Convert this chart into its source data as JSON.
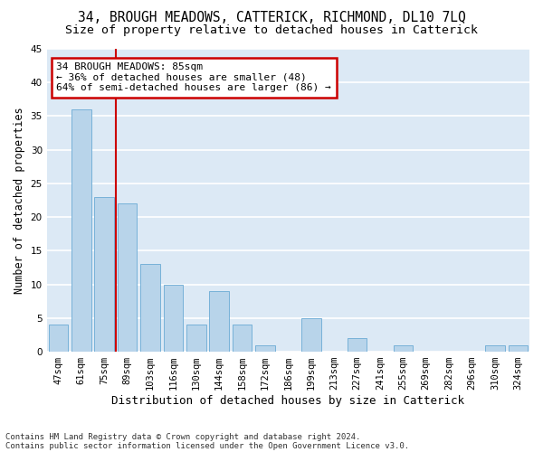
{
  "title1": "34, BROUGH MEADOWS, CATTERICK, RICHMOND, DL10 7LQ",
  "title2": "Size of property relative to detached houses in Catterick",
  "xlabel": "Distribution of detached houses by size in Catterick",
  "ylabel": "Number of detached properties",
  "categories": [
    "47sqm",
    "61sqm",
    "75sqm",
    "89sqm",
    "103sqm",
    "116sqm",
    "130sqm",
    "144sqm",
    "158sqm",
    "172sqm",
    "186sqm",
    "199sqm",
    "213sqm",
    "227sqm",
    "241sqm",
    "255sqm",
    "269sqm",
    "282sqm",
    "296sqm",
    "310sqm",
    "324sqm"
  ],
  "values": [
    4,
    36,
    23,
    22,
    13,
    10,
    4,
    9,
    4,
    1,
    0,
    5,
    0,
    2,
    0,
    1,
    0,
    0,
    0,
    1,
    1
  ],
  "bar_color": "#b8d4ea",
  "bar_edge_color": "#6aaad4",
  "vline_color": "#cc0000",
  "annotation_title": "34 BROUGH MEADOWS: 85sqm",
  "annotation_line1": "← 36% of detached houses are smaller (48)",
  "annotation_line2": "64% of semi-detached houses are larger (86) →",
  "annotation_box_color": "#cc0000",
  "ylim": [
    0,
    45
  ],
  "yticks": [
    0,
    5,
    10,
    15,
    20,
    25,
    30,
    35,
    40,
    45
  ],
  "footer1": "Contains HM Land Registry data © Crown copyright and database right 2024.",
  "footer2": "Contains public sector information licensed under the Open Government Licence v3.0.",
  "bg_color": "#dce9f5",
  "grid_color": "#ffffff",
  "title1_fontsize": 10.5,
  "title2_fontsize": 9.5,
  "xlabel_fontsize": 9,
  "ylabel_fontsize": 8.5,
  "tick_fontsize": 7.5,
  "footer_fontsize": 6.5,
  "ann_fontsize": 8
}
